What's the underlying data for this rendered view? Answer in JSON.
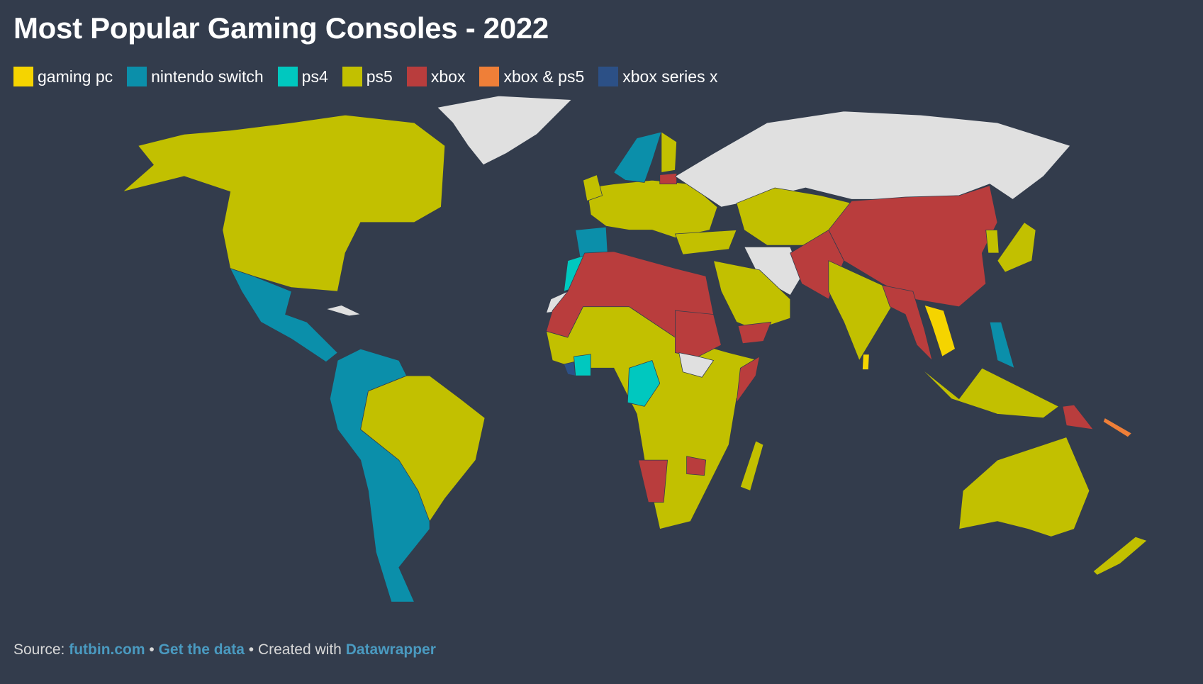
{
  "title": "Most Popular Gaming Consoles - 2022",
  "legend": [
    {
      "label": "gaming pc",
      "color": "#f5d400"
    },
    {
      "label": "nintendo switch",
      "color": "#0b8faa"
    },
    {
      "label": "ps4",
      "color": "#00c8bf"
    },
    {
      "label": "ps5",
      "color": "#c2c000"
    },
    {
      "label": "xbox",
      "color": "#b93d3d"
    },
    {
      "label": "xbox & ps5",
      "color": "#ef7f38"
    },
    {
      "label": "xbox series x",
      "color": "#2c5086"
    }
  ],
  "no_data_color": "#e0e0e0",
  "regions": [
    {
      "name": "greenland",
      "category": null
    },
    {
      "name": "canada-usa",
      "category": "ps5"
    },
    {
      "name": "mexico-central-america",
      "category": "nintendo switch"
    },
    {
      "name": "cuba",
      "category": null
    },
    {
      "name": "andes-southern-cone",
      "category": "nintendo switch"
    },
    {
      "name": "brazil",
      "category": "ps5"
    },
    {
      "name": "europe",
      "category": "ps5"
    },
    {
      "name": "spain",
      "category": "nintendo switch"
    },
    {
      "name": "sweden-norway",
      "category": "nintendo switch"
    },
    {
      "name": "finland",
      "category": "ps5"
    },
    {
      "name": "uk",
      "category": "ps5"
    },
    {
      "name": "baltics",
      "category": "xbox"
    },
    {
      "name": "russia",
      "category": null
    },
    {
      "name": "central-asia",
      "category": "ps5"
    },
    {
      "name": "china",
      "category": "xbox"
    },
    {
      "name": "turkey",
      "category": "ps5"
    },
    {
      "name": "iran",
      "category": null
    },
    {
      "name": "arabia",
      "category": "ps5"
    },
    {
      "name": "yemen",
      "category": "xbox"
    },
    {
      "name": "pakistan-afghanistan",
      "category": "xbox"
    },
    {
      "name": "india",
      "category": "ps5"
    },
    {
      "name": "sri-lanka",
      "category": "gaming pc"
    },
    {
      "name": "myanmar-thailand",
      "category": "xbox"
    },
    {
      "name": "vietnam-laos",
      "category": "gaming pc"
    },
    {
      "name": "malaysia-indonesia",
      "category": "ps5"
    },
    {
      "name": "philippines",
      "category": "nintendo switch"
    },
    {
      "name": "japan",
      "category": "ps5"
    },
    {
      "name": "korea",
      "category": "ps5"
    },
    {
      "name": "papua-new-guinea",
      "category": "xbox"
    },
    {
      "name": "solomon-islands",
      "category": "xbox & ps5"
    },
    {
      "name": "australia",
      "category": "ps5"
    },
    {
      "name": "new-zealand",
      "category": "ps5"
    },
    {
      "name": "morocco",
      "category": "ps4"
    },
    {
      "name": "western-sahara",
      "category": null
    },
    {
      "name": "north-africa",
      "category": "xbox"
    },
    {
      "name": "sub-saharan-africa",
      "category": "ps5"
    },
    {
      "name": "sudan",
      "category": "xbox"
    },
    {
      "name": "south-sudan",
      "category": null
    },
    {
      "name": "somalia",
      "category": "xbox"
    },
    {
      "name": "ivory-coast",
      "category": "ps4"
    },
    {
      "name": "liberia",
      "category": "xbox series x"
    },
    {
      "name": "congo",
      "category": "ps4"
    },
    {
      "name": "namibia",
      "category": "xbox"
    },
    {
      "name": "zimbabwe",
      "category": "xbox"
    },
    {
      "name": "madagascar",
      "category": "ps5"
    }
  ],
  "footer": {
    "source_prefix": "Source: ",
    "source_link": "futbin.com",
    "sep1": " • ",
    "data_link": "Get the data",
    "sep2": " • Created with ",
    "tool_link": "Datawrapper"
  }
}
